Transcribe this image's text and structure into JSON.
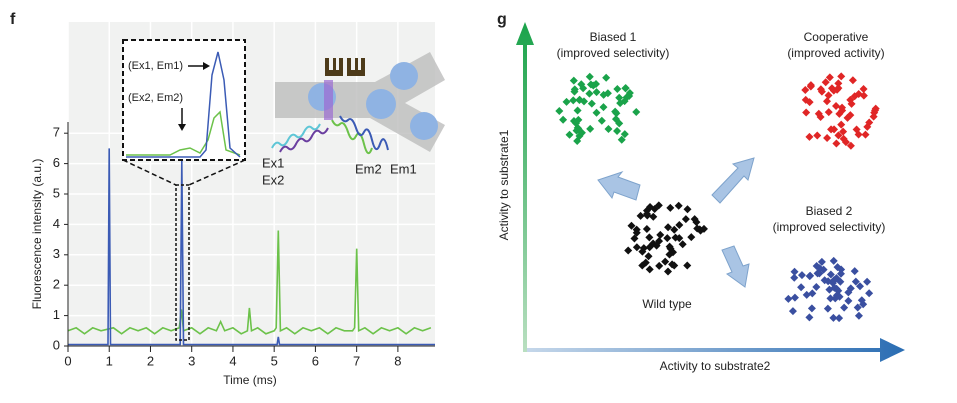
{
  "panel_f": {
    "label": "f",
    "chart_data": {
      "type": "line",
      "ylabel": "Fluorescence intensity (a.u.)",
      "xlabel": "Time (ms)",
      "xlim": [
        0,
        8.9
      ],
      "ylim": [
        0,
        7.5
      ],
      "xticks": [
        0,
        1,
        2,
        3,
        4,
        5,
        6,
        7,
        8
      ],
      "yticks": [
        0,
        1,
        2,
        3,
        4,
        5,
        6,
        7
      ],
      "grid": true,
      "series": [
        {
          "color": "#6cc24a",
          "x": [
            0,
            0.2,
            0.4,
            0.6,
            0.8,
            1.1,
            1.3,
            1.5,
            1.7,
            1.9,
            2.1,
            2.3,
            2.5,
            2.7,
            2.75,
            2.8,
            3.0,
            3.2,
            3.4,
            3.6,
            3.7,
            3.8,
            4.0,
            4.2,
            4.35,
            4.4,
            4.45,
            4.6,
            4.8,
            5.0,
            5.05,
            5.1,
            5.15,
            5.3,
            5.5,
            5.7,
            5.9,
            6.1,
            6.3,
            6.5,
            6.7,
            6.9,
            6.95,
            7.0,
            7.05,
            7.2,
            7.4,
            7.6,
            7.8,
            8.0,
            8.2,
            8.4,
            8.6,
            8.8
          ],
          "values": [
            0.5,
            0.6,
            0.4,
            0.6,
            0.5,
            0.6,
            0.4,
            0.6,
            0.5,
            0.6,
            0.4,
            0.6,
            0.5,
            0.6,
            1.2,
            0.5,
            0.6,
            0.4,
            0.6,
            0.5,
            0.8,
            0.5,
            0.6,
            0.4,
            0.5,
            1.25,
            0.5,
            0.6,
            0.4,
            0.5,
            0.6,
            3.8,
            0.5,
            0.6,
            0.4,
            0.6,
            0.5,
            0.6,
            0.4,
            0.6,
            0.5,
            0.5,
            0.6,
            3.2,
            0.5,
            0.6,
            0.4,
            0.6,
            0.5,
            0.6,
            0.4,
            0.6,
            0.5,
            0.6
          ]
        },
        {
          "color": "#3b5bb5",
          "x": [
            0,
            0.97,
            1.0,
            1.03,
            2.72,
            2.76,
            2.8,
            5.07,
            5.1,
            5.13,
            8.9
          ],
          "values": [
            0.05,
            0.05,
            6.5,
            0.05,
            0.05,
            6.1,
            0.05,
            0.05,
            0.3,
            0.05,
            0.05
          ]
        }
      ]
    },
    "inset": {
      "label_1": "(Ex1, Em1)",
      "label_2": "(Ex2, Em2)"
    },
    "excitation": [
      "Ex1",
      "Ex2"
    ],
    "emission": [
      "Em2",
      "Em1"
    ]
  },
  "panel_g": {
    "label": "g",
    "y_axis": "Activity to substrate1",
    "x_axis": "Activity to substrate2",
    "nodes": [
      {
        "title": "Biased 1",
        "subtitle": "(improved selectivity)",
        "color": "#1aa34a"
      },
      {
        "title": "Cooperative",
        "subtitle": "(improved activity)",
        "color": "#e02626"
      },
      {
        "title": "Wild type",
        "color": "#111111"
      },
      {
        "title": "Biased 2",
        "subtitle": "(improved selectivity)",
        "color": "#3a4fa0"
      }
    ]
  }
}
